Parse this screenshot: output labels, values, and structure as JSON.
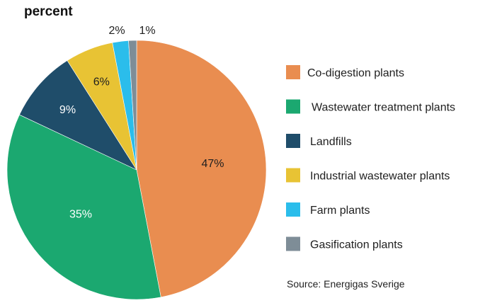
{
  "chart_data": {
    "type": "pie",
    "title": "percent",
    "slices": [
      {
        "label": "Co-digestion plants",
        "value": 47,
        "data_label": "47%",
        "color": "#E98D50"
      },
      {
        "label": "Wastewater treatment plants",
        "value": 35,
        "data_label": "35%",
        "color": "#1BA870"
      },
      {
        "label": "Landfills",
        "value": 9,
        "data_label": "9%",
        "color": "#1F4D6A"
      },
      {
        "label": "Industrial wastewater plants",
        "value": 6,
        "data_label": "6%",
        "color": "#E8C334"
      },
      {
        "label": "Farm plants",
        "value": 2,
        "data_label": "2%",
        "color": "#2BBDEB"
      },
      {
        "label": "Gasification plants",
        "value": 1,
        "data_label": "1%",
        "color": "#7E8D97"
      }
    ],
    "start_at": "top",
    "direction": "clockwise",
    "legend_position": "right",
    "source": "Source: Energigas Sverige"
  }
}
